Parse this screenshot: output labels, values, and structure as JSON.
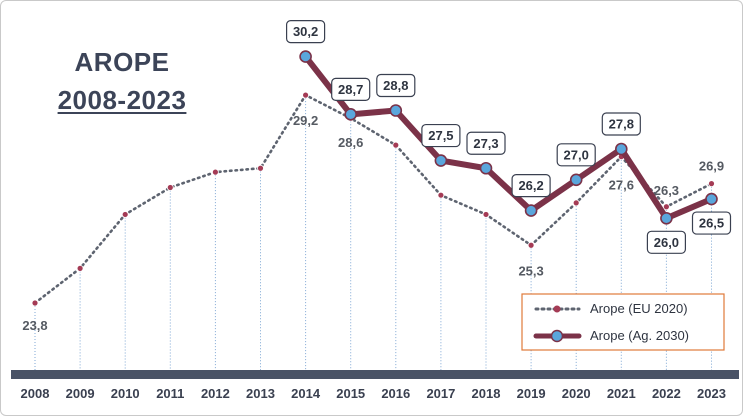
{
  "title": {
    "line1": "AROPE",
    "line2": "2008-2023"
  },
  "colors": {
    "eu_line": "#5e6470",
    "eu_marker": "#a43b55",
    "ag_line": "#7b3248",
    "ag_marker": "#5aa6dc",
    "axis_bar": "#4a5366",
    "drop_line": "#7fa7d4"
  },
  "chart_data": {
    "type": "line",
    "x": [
      "2008",
      "2009",
      "2010",
      "2011",
      "2012",
      "2013",
      "2014",
      "2015",
      "2016",
      "2017",
      "2018",
      "2019",
      "2020",
      "2021",
      "2022",
      "2023"
    ],
    "series": [
      {
        "name": "Arope (EU 2020)",
        "values": [
          23.8,
          24.7,
          26.1,
          26.8,
          27.2,
          27.3,
          29.2,
          28.6,
          27.9,
          26.6,
          26.1,
          25.3,
          26.4,
          27.6,
          26.3,
          26.9
        ],
        "labels": {
          "2008": "23,8",
          "2014": "29,2",
          "2015": "28,6",
          "2019": "25,3",
          "2021": "27,6",
          "2022": "26,3",
          "2023": "26,9"
        }
      },
      {
        "name": "Arope (Ag. 2030)",
        "values": [
          null,
          null,
          null,
          null,
          null,
          null,
          30.2,
          28.7,
          28.8,
          27.5,
          27.3,
          26.2,
          27.0,
          27.8,
          26.0,
          26.5
        ],
        "labels": {
          "2014": "30,2",
          "2015": "28,7",
          "2016": "28,8",
          "2017": "27,5",
          "2018": "27,3",
          "2019": "26,2",
          "2020": "27,0",
          "2021": "27,8",
          "2022": "26,0",
          "2023": "26,5"
        }
      }
    ],
    "legend": [
      "Arope (EU 2020)",
      "Arope (Ag. 2030)"
    ],
    "legend_position": "bottom-right",
    "grid": false
  }
}
